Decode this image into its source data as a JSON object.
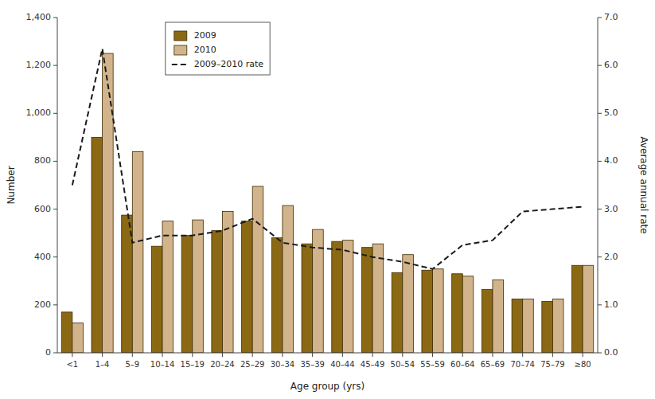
{
  "chart_data": {
    "type": "bar",
    "categories": [
      "<1",
      "1–4",
      "5–9",
      "10–14",
      "15–19",
      "20–24",
      "25–29",
      "30–34",
      "35–39",
      "40–44",
      "45–49",
      "50–54",
      "55–59",
      "60–64",
      "65–69",
      "70–74",
      "75–79",
      "≥80"
    ],
    "series": [
      {
        "name": "2009",
        "color": "#8B6914",
        "values": [
          170,
          900,
          575,
          445,
          490,
          510,
          550,
          480,
          455,
          465,
          440,
          335,
          345,
          330,
          265,
          225,
          215,
          365
        ]
      },
      {
        "name": "2010",
        "color": "#D2B48C",
        "values": [
          125,
          1250,
          840,
          550,
          555,
          590,
          695,
          615,
          515,
          470,
          455,
          410,
          350,
          320,
          305,
          225,
          225,
          365
        ]
      },
      {
        "name": "2009–2010 rate",
        "type": "line",
        "axis": "y2",
        "color": "#1a1a1a",
        "line_style": "dashed",
        "values": [
          3.5,
          6.35,
          2.3,
          2.45,
          2.45,
          2.55,
          2.8,
          2.3,
          2.2,
          2.15,
          2.0,
          1.9,
          1.75,
          2.25,
          2.35,
          2.95,
          3.0,
          3.05
        ]
      }
    ],
    "xlabel": "Age group (yrs)",
    "ylabel": "Number",
    "y2label": "Average annual rate",
    "ylim": [
      0,
      1400
    ],
    "yticks": [
      0,
      200,
      400,
      600,
      800,
      {
        "value": 1000,
        "label": "1,000"
      },
      {
        "value": 1200,
        "label": "1,200"
      },
      {
        "value": 1400,
        "label": "1,400"
      }
    ],
    "y2lim": [
      0,
      7.0
    ],
    "y2ticks": [
      {
        "value": 0,
        "label": "0.0"
      },
      {
        "value": 1,
        "label": "1.0"
      },
      {
        "value": 2,
        "label": "2.0"
      },
      {
        "value": 3,
        "label": "3.0"
      },
      {
        "value": 4,
        "label": "4.0"
      },
      {
        "value": 5,
        "label": "5.0"
      },
      {
        "value": 6,
        "label": "6.0"
      },
      {
        "value": 7,
        "label": "7.0"
      }
    ],
    "grid": false,
    "legend": "upper left"
  }
}
